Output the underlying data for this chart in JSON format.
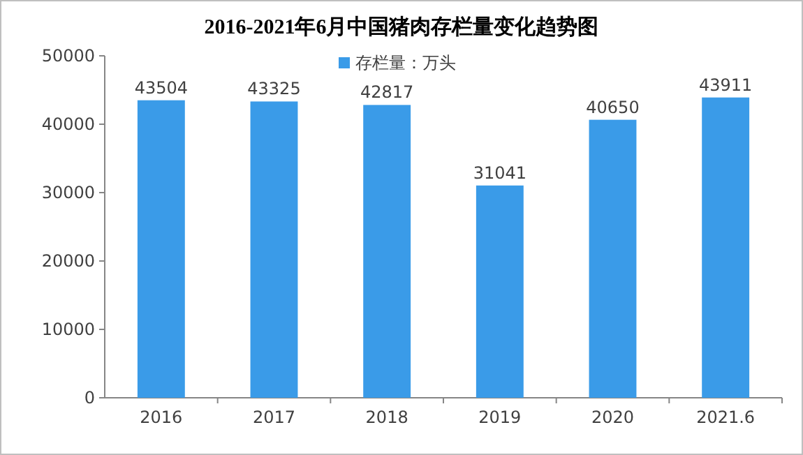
{
  "chart_data": {
    "type": "bar",
    "title": "2016-2021年6月中国猪肉存栏量变化趋势图",
    "categories": [
      "2016",
      "2017",
      "2018",
      "2019",
      "2020",
      "2021.6"
    ],
    "series": [
      {
        "name": "存栏量：万头",
        "color": "#3a9be8",
        "values": [
          43504,
          43325,
          42817,
          31041,
          40650,
          43911
        ]
      }
    ],
    "ylim": [
      0,
      50000
    ],
    "yticks": [
      0,
      10000,
      20000,
      30000,
      40000,
      50000
    ],
    "grid": false,
    "legend": "top",
    "data_labels": true
  }
}
